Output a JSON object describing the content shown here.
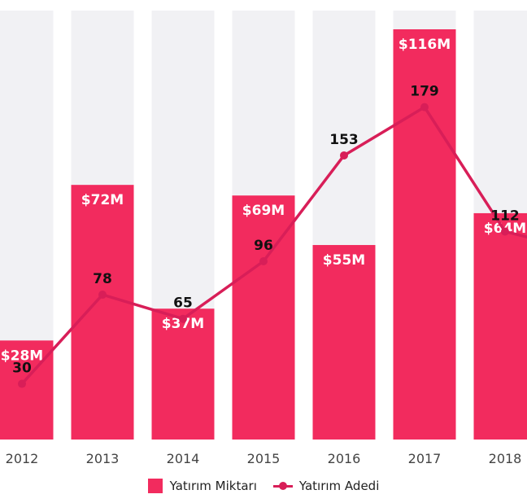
{
  "chart_data": {
    "type": "bar",
    "categories": [
      "2012",
      "2013",
      "2014",
      "2015",
      "2016",
      "2017",
      "2018"
    ],
    "series": [
      {
        "name": "Yatırım Miktarı",
        "kind": "bar",
        "values": [
          28,
          72,
          37,
          69,
          55,
          116,
          64
        ],
        "labels": [
          "$28M",
          "$72M",
          "$37M",
          "$69M",
          "$55M",
          "$116M",
          "$64M"
        ],
        "color": "#f22b5e"
      },
      {
        "name": "Yatırım Adedi",
        "kind": "line",
        "values": [
          30,
          78,
          65,
          96,
          153,
          179,
          112
        ],
        "labels": [
          "30",
          "78",
          "65",
          "96",
          "153",
          "179",
          "112"
        ],
        "color": "#d81e58"
      }
    ],
    "background_column_color": "#f1f1f4",
    "ylim": [
      0,
      116
    ],
    "y2lim": [
      0,
      231
    ],
    "title": "",
    "xlabel": "",
    "ylabel": "",
    "grid": false,
    "legend": "bottom-center"
  }
}
